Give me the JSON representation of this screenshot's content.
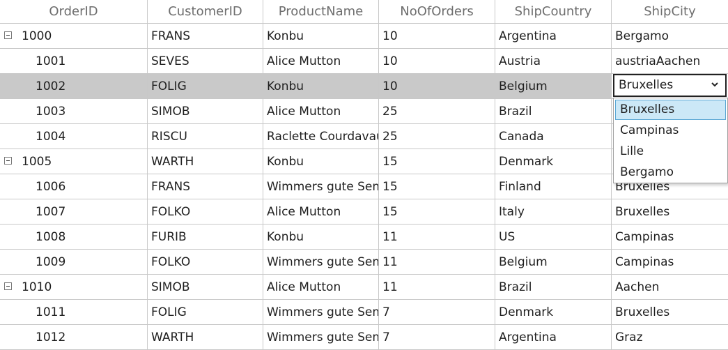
{
  "columns": [
    "OrderID",
    "CustomerID",
    "ProductName",
    "NoOfOrders",
    "ShipCountry",
    "ShipCity"
  ],
  "rows": [
    {
      "order_id": "1000",
      "customer_id": "FRANS",
      "product": "Konbu",
      "orders": "10",
      "country": "Argentina",
      "city": "Bergamo",
      "group": true
    },
    {
      "order_id": "1001",
      "customer_id": "SEVES",
      "product": "Alice Mutton",
      "orders": "10",
      "country": "Austria",
      "city": "austriaAachen",
      "group": false
    },
    {
      "order_id": "1002",
      "customer_id": "FOLIG",
      "product": "Konbu",
      "orders": "10",
      "country": "Belgium",
      "city": "",
      "group": false,
      "selected": true
    },
    {
      "order_id": "1003",
      "customer_id": "SIMOB",
      "product": "Alice Mutton",
      "orders": "25",
      "country": "Brazil",
      "city": "",
      "group": false
    },
    {
      "order_id": "1004",
      "customer_id": "RISCU",
      "product": "Raclette Courdavault",
      "orders": "25",
      "country": "Canada",
      "city": "",
      "group": false
    },
    {
      "order_id": "1005",
      "customer_id": "WARTH",
      "product": "Konbu",
      "orders": "15",
      "country": "Denmark",
      "city": "",
      "group": true
    },
    {
      "order_id": "1006",
      "customer_id": "FRANS",
      "product": "Wimmers gute Semmelknödel",
      "orders": "15",
      "country": "Finland",
      "city": "Bruxelles",
      "group": false
    },
    {
      "order_id": "1007",
      "customer_id": "FOLKO",
      "product": "Alice Mutton",
      "orders": "15",
      "country": "Italy",
      "city": "Bruxelles",
      "group": false
    },
    {
      "order_id": "1008",
      "customer_id": "FURIB",
      "product": "Konbu",
      "orders": "11",
      "country": "US",
      "city": "Campinas",
      "group": false
    },
    {
      "order_id": "1009",
      "customer_id": "FOLKO",
      "product": "Wimmers gute Semmelknödel",
      "orders": "11",
      "country": "Belgium",
      "city": "Campinas",
      "group": false
    },
    {
      "order_id": "1010",
      "customer_id": "SIMOB",
      "product": "Alice Mutton",
      "orders": "11",
      "country": "Brazil",
      "city": "Aachen",
      "group": true
    },
    {
      "order_id": "1011",
      "customer_id": "FOLIG",
      "product": "Wimmers gute Semmelknödel",
      "orders": "7",
      "country": "Denmark",
      "city": "Bruxelles",
      "group": false
    },
    {
      "order_id": "1012",
      "customer_id": "WARTH",
      "product": "Wimmers gute Semmelknödel",
      "orders": "7",
      "country": "Argentina",
      "city": "Graz",
      "group": false
    }
  ],
  "editor": {
    "value": "Bruxelles",
    "options": [
      "Bruxelles",
      "Campinas",
      "Lille",
      "Bergamo"
    ],
    "selected_option": "Bruxelles"
  },
  "colors": {
    "selected_row": "#c9c9c9",
    "dropdown_highlight": "#cce8f7",
    "dropdown_highlight_border": "#5ba7d4",
    "grid_lines": "#c8c8c8",
    "header_text": "#6e6e6e"
  },
  "icons": {
    "expander": "collapse-minus-icon",
    "combo_arrow": "chevron-down-icon"
  }
}
